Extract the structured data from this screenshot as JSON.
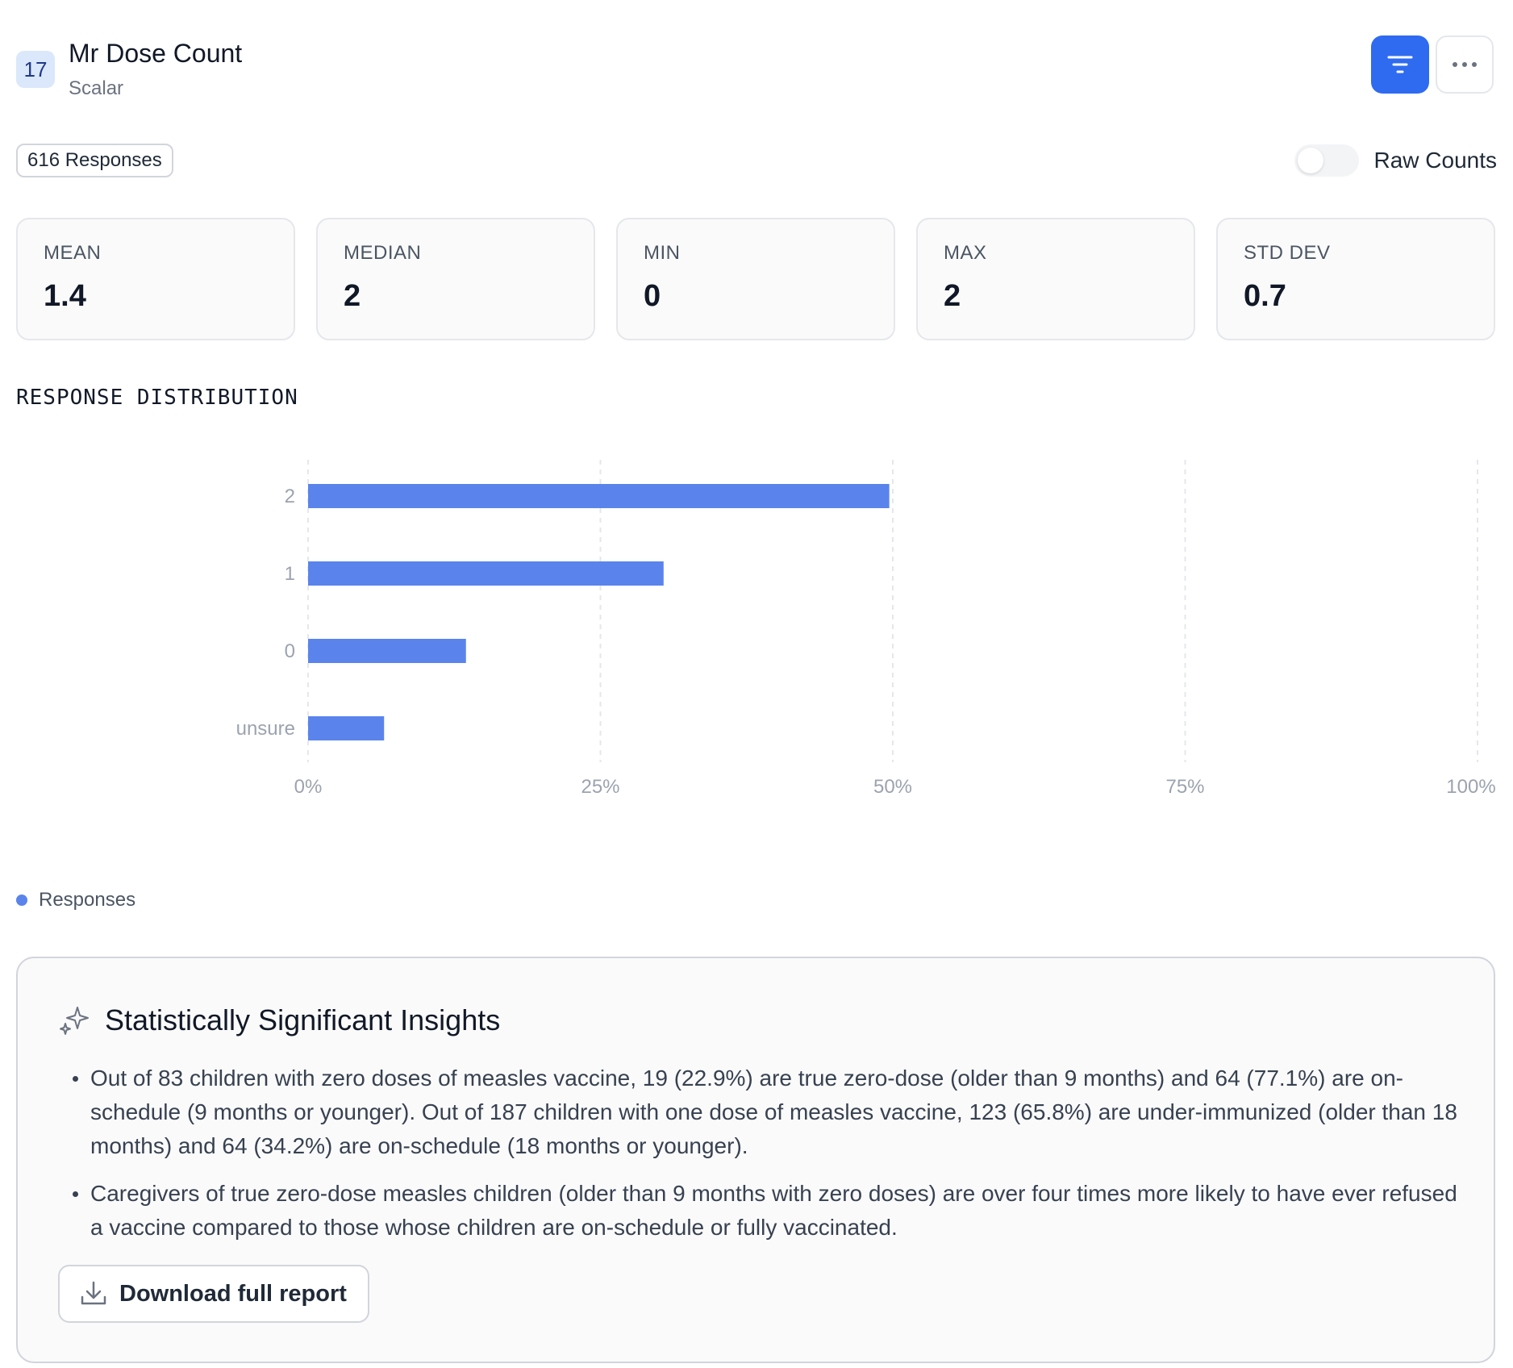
{
  "question": {
    "number": "17",
    "title": "Mr Dose Count",
    "type": "Scalar"
  },
  "toolbar": {
    "filter_icon": "filter-icon",
    "more_icon": "more-horizontal-icon",
    "accent_color": "#2f6bf0"
  },
  "responses_label": "616 Responses",
  "raw_counts": {
    "label": "Raw Counts",
    "enabled": false
  },
  "stats": [
    {
      "label": "MEAN",
      "value": "1.4"
    },
    {
      "label": "MEDIAN",
      "value": "2"
    },
    {
      "label": "MIN",
      "value": "0"
    },
    {
      "label": "MAX",
      "value": "2"
    },
    {
      "label": "STD DEV",
      "value": "0.7"
    }
  ],
  "distribution_title": "RESPONSE DISTRIBUTION",
  "chart_data": {
    "type": "bar",
    "orientation": "horizontal",
    "categories": [
      "2",
      "1",
      "0",
      "unsure"
    ],
    "series": [
      {
        "name": "Responses",
        "values": [
          49.7,
          30.4,
          13.5,
          6.5
        ],
        "color": "#5a84ec"
      }
    ],
    "xlim": [
      0,
      100
    ],
    "x_ticks": [
      "0%",
      "25%",
      "50%",
      "75%",
      "100%"
    ],
    "grid": true,
    "legend": "bottom-left"
  },
  "legend_label": "Responses",
  "insights": {
    "icon": "sparkles-icon",
    "title": "Statistically Significant Insights",
    "items": [
      "Out of 83 children with zero doses of measles vaccine, 19 (22.9%) are true zero-dose (older than 9 months) and 64 (77.1%) are on-schedule (9 months or younger). Out of 187 children with one dose of measles vaccine, 123 (65.8%) are under-immunized (older than 18 months) and 64 (34.2%) are on-schedule (18 months or younger).",
      "Caregivers of true zero-dose measles children (older than 9 months with zero doses) are over four times more likely to have ever refused a vaccine compared to those whose children are on-schedule or fully vaccinated."
    ],
    "download_label": "Download full report",
    "download_icon": "download-icon"
  }
}
